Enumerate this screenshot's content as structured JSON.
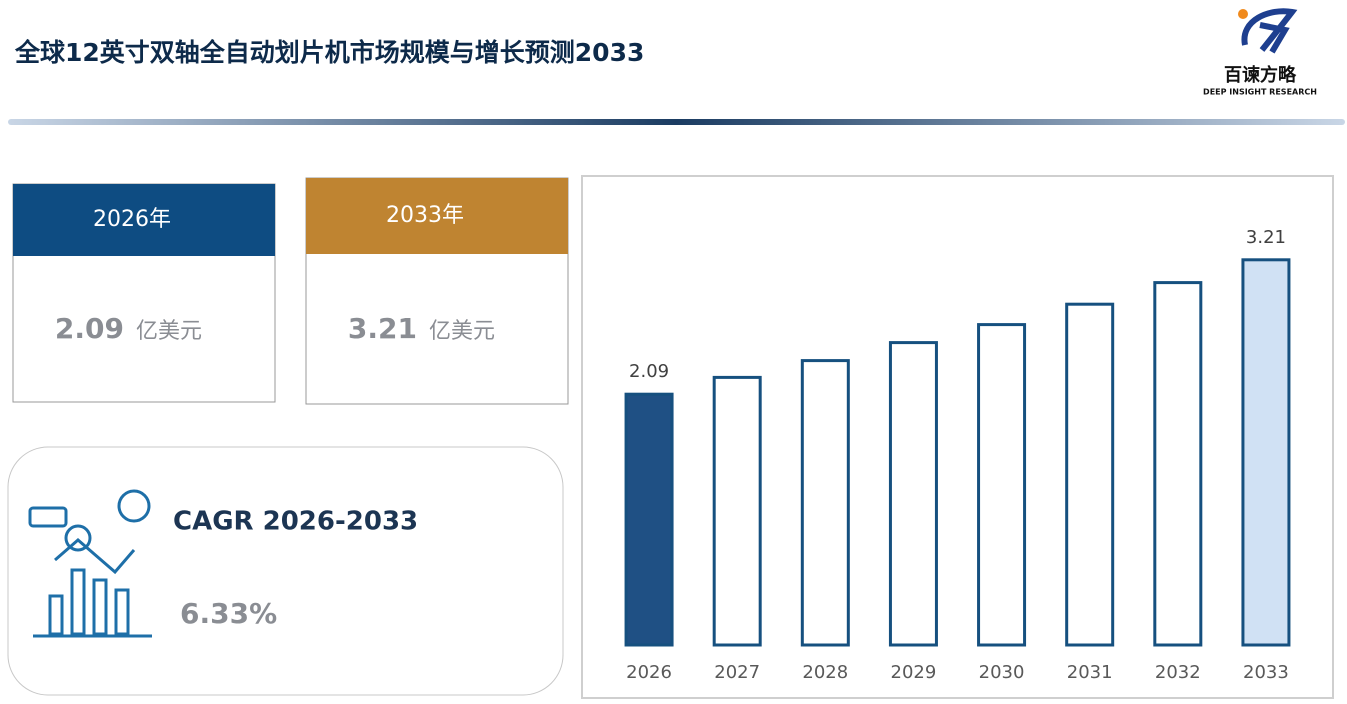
{
  "header": {
    "title": "全球12英寸双轴全自动划片机市场规模与增长预测2033",
    "logo_cn": "百谏方略",
    "logo_en": "DEEP INSIGHT RESEARCH"
  },
  "cards": [
    {
      "year_label": "2026年",
      "value": 2.09,
      "unit": "亿美元",
      "color": "#0e4c82"
    },
    {
      "year_label": "2033年",
      "value": 3.21,
      "unit": "亿美元",
      "color": "#bf8431"
    }
  ],
  "cagr": {
    "label": "CAGR 2026-2033",
    "value": "6.33%"
  },
  "chart_data": {
    "type": "bar",
    "categories": [
      "2026",
      "2027",
      "2028",
      "2029",
      "2030",
      "2031",
      "2032",
      "2033"
    ],
    "values": [
      2.09,
      2.23,
      2.37,
      2.52,
      2.67,
      2.84,
      3.02,
      3.21
    ],
    "colors": [
      "#1f5084",
      "#ffffff",
      "#ffffff",
      "#ffffff",
      "#ffffff",
      "#ffffff",
      "#ffffff",
      "#d0e1f4"
    ],
    "edge_color": "#16507f",
    "labeled": [
      0,
      7
    ],
    "ylim": [
      0,
      3.9
    ]
  }
}
